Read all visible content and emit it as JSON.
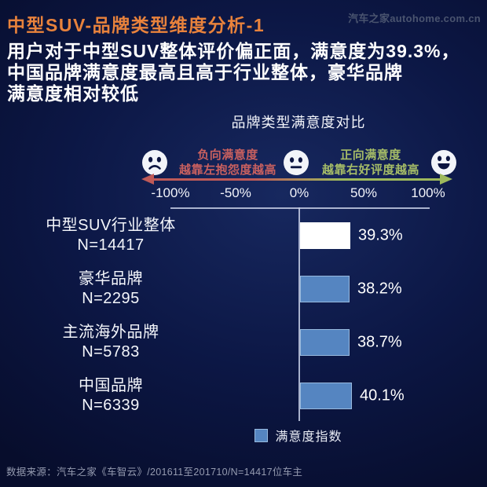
{
  "header": {
    "title": "中型SUV-品牌类型维度分析-1",
    "logo": "汽车之家autohome.com.cn"
  },
  "summary": {
    "line1": "用户对于中型SUV整体评价偏正面，满意度为39.3%，",
    "line2": "中国品牌满意度最高且高于行业整体，豪华品牌",
    "line3": "满意度相对较低"
  },
  "chart": {
    "title": "品牌类型满意度对比",
    "negative_line1": "负向满意度",
    "negative_line2": "越靠左抱怨度越高",
    "positive_line1": "正向满意度",
    "positive_line2": "越靠右好评度越高",
    "axis_ticks": [
      "-100%",
      "-50%",
      "0%",
      "50%",
      "100%"
    ],
    "legend_label": "满意度指数",
    "icons": [
      "sad-face-icon",
      "neutral-face-icon",
      "happy-face-icon"
    ]
  },
  "chart_data": {
    "type": "bar",
    "orientation": "horizontal",
    "title": "品牌类型满意度对比",
    "categories": [
      "中型SUV行业整体",
      "豪华品牌",
      "主流海外品牌",
      "中国品牌"
    ],
    "sample_sizes": [
      "N=14417",
      "N=2295",
      "N=5783",
      "N=6339"
    ],
    "values": [
      39.3,
      38.2,
      38.7,
      40.1
    ],
    "value_labels": [
      "39.3%",
      "38.2%",
      "38.7%",
      "40.1%"
    ],
    "bar_colors": [
      "#ffffff",
      "#5585c1",
      "#5585c1",
      "#5585c1"
    ],
    "series_name": "满意度指数",
    "xlim": [
      -100,
      100
    ],
    "x_tick_values": [
      -100,
      -50,
      0,
      50,
      100
    ],
    "grid": false,
    "legend_position": "bottom"
  },
  "colors": {
    "background_navy": "#0c1745",
    "title_orange": "#e8823c",
    "bar_blue": "#5585c1",
    "bar_white": "#ffffff",
    "negative_red": "#c9605f",
    "positive_green": "#a6bd67",
    "arrow_red": "#bf5a58",
    "arrow_green": "#9eb95c",
    "footer_gray": "#959bb0"
  },
  "footer": {
    "source": "数据来源：汽车之家《车智云》/201611至201710/N=14417位车主"
  }
}
